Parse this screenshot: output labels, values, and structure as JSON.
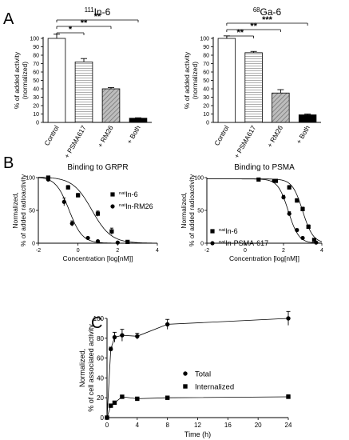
{
  "panels": {
    "A": "A",
    "B": "B",
    "C": "C"
  },
  "chart_data": [
    {
      "id": "A1",
      "type": "bar",
      "title_sup": "111",
      "title_main": "In-6",
      "ylabel_1": "% of added activity",
      "ylabel_2": "(normalized)",
      "ylim": [
        0,
        120
      ],
      "yticks": [
        0,
        10,
        20,
        30,
        40,
        50,
        60,
        70,
        80,
        90,
        100
      ],
      "categories": [
        "Control",
        "+ PSMA617",
        "+ RM26",
        "+ Both"
      ],
      "values": [
        100,
        72,
        40,
        5
      ],
      "errors": [
        5,
        4,
        1.5,
        0.5
      ],
      "fills": [
        "#ffffff",
        "hatch-h",
        "hatch-d",
        "#000000"
      ],
      "significance": [
        {
          "from": 0,
          "to": 1,
          "label": "*"
        },
        {
          "from": 0,
          "to": 2,
          "label": "**"
        },
        {
          "from": 0,
          "to": 3,
          "label": "**"
        }
      ]
    },
    {
      "id": "A2",
      "type": "bar",
      "title_sup": "68",
      "title_main": "Ga-6",
      "ylabel_1": "% of added activity",
      "ylabel_2": "(normalized)",
      "ylim": [
        0,
        120
      ],
      "yticks": [
        0,
        10,
        20,
        30,
        40,
        50,
        60,
        70,
        80,
        90,
        100
      ],
      "categories": [
        "Control",
        "+ PSMA617",
        "+ RM26",
        "+ Both"
      ],
      "values": [
        100,
        83,
        35,
        9
      ],
      "errors": [
        3,
        1.5,
        4,
        1
      ],
      "fills": [
        "#ffffff",
        "hatch-h",
        "hatch-d",
        "#000000"
      ],
      "significance": [
        {
          "from": 0,
          "to": 1,
          "label": "**"
        },
        {
          "from": 0,
          "to": 2,
          "label": "**"
        },
        {
          "from": 0,
          "to": 3,
          "label": "***"
        }
      ]
    },
    {
      "id": "B1",
      "type": "line",
      "title": "Binding to GRPR",
      "ylabel_1": "Normalized,",
      "ylabel_2": "% of added radioactivity",
      "xlabel": "Concentration [log[nM]]",
      "xlim": [
        -2,
        4
      ],
      "ylim": [
        0,
        100
      ],
      "xticks": [
        -2,
        0,
        2,
        4
      ],
      "yticks": [
        0,
        50,
        100
      ],
      "series": [
        {
          "sup": "nat",
          "name": "In-6",
          "marker": "square",
          "points": [
            [
              -1.5,
              100
            ],
            [
              -0.5,
              85
            ],
            [
              0,
              73
            ],
            [
              1,
              45
            ],
            [
              1.7,
              18
            ],
            [
              2.5,
              2
            ]
          ],
          "errors": [
            2,
            3,
            3,
            4,
            5,
            1
          ],
          "fit": {
            "top": 101,
            "bottom": 0,
            "ic50": 0.7,
            "slope": -0.9
          }
        },
        {
          "sup": "nat",
          "name": "In-RM26",
          "marker": "circle",
          "points": [
            [
              -1.5,
              97
            ],
            [
              -0.7,
              63
            ],
            [
              -0.3,
              30
            ],
            [
              0.5,
              8
            ],
            [
              1,
              3
            ],
            [
              2,
              1
            ]
          ],
          "errors": [
            2,
            6,
            4,
            1,
            1,
            1
          ],
          "fit": {
            "top": 101,
            "bottom": 0,
            "ic50": -0.45,
            "slope": -1.3
          }
        }
      ]
    },
    {
      "id": "B2",
      "type": "line",
      "title": "Binding to PSMA",
      "ylabel_1": "Normalized,",
      "ylabel_2": "% of added radioactivity",
      "xlabel": "Concentration [log[nM]]",
      "xlim": [
        -2,
        4
      ],
      "ylim": [
        0,
        100
      ],
      "xticks": [
        -2,
        0,
        2,
        4
      ],
      "yticks": [
        0,
        50,
        100
      ],
      "series": [
        {
          "sup": "nat",
          "name": "In-6",
          "marker": "square",
          "points": [
            [
              0.7,
              97
            ],
            [
              1.6,
              95
            ],
            [
              2.3,
              85
            ],
            [
              2.7,
              65
            ],
            [
              3,
              52
            ],
            [
              3.3,
              25
            ],
            [
              3.6,
              5
            ]
          ],
          "errors": [
            2,
            2,
            3,
            3,
            3,
            3,
            2
          ],
          "fit": {
            "top": 98,
            "bottom": 0,
            "ic50": 3.0,
            "slope": -1.6
          }
        },
        {
          "sup": "nat",
          "name": "In-PSMA-617",
          "marker": "circle",
          "points": [
            [
              1.5,
              95
            ],
            [
              2,
              70
            ],
            [
              2.3,
              45
            ],
            [
              2.7,
              20
            ],
            [
              3,
              8
            ],
            [
              3.7,
              1
            ]
          ],
          "errors": [
            2,
            3,
            3,
            2,
            1,
            1
          ],
          "fit": {
            "top": 98,
            "bottom": 0,
            "ic50": 2.25,
            "slope": -1.6
          }
        }
      ]
    },
    {
      "id": "C",
      "type": "line",
      "ylabel_1": "Normalized,",
      "ylabel_2": "% of cell associated activity",
      "xlabel": "Time (h)",
      "xlim": [
        0,
        24
      ],
      "ylim": [
        0,
        100
      ],
      "xticks": [
        0,
        4,
        8,
        12,
        16,
        20,
        24
      ],
      "yticks": [
        0,
        20,
        40,
        60,
        80,
        100
      ],
      "series": [
        {
          "name": "Total",
          "marker": "circle",
          "x": [
            0,
            0.5,
            1,
            2,
            4,
            8,
            24
          ],
          "y": [
            0,
            69,
            81,
            83,
            82,
            94,
            100
          ],
          "errors": [
            1,
            2,
            5,
            6,
            3,
            5,
            7
          ]
        },
        {
          "name": "Internalized",
          "marker": "square",
          "x": [
            0,
            0.5,
            1,
            2,
            4,
            8,
            24
          ],
          "y": [
            0,
            12,
            15,
            21,
            19,
            20,
            21
          ],
          "errors": [
            1,
            1,
            1,
            1,
            1,
            1,
            2
          ]
        }
      ]
    }
  ]
}
